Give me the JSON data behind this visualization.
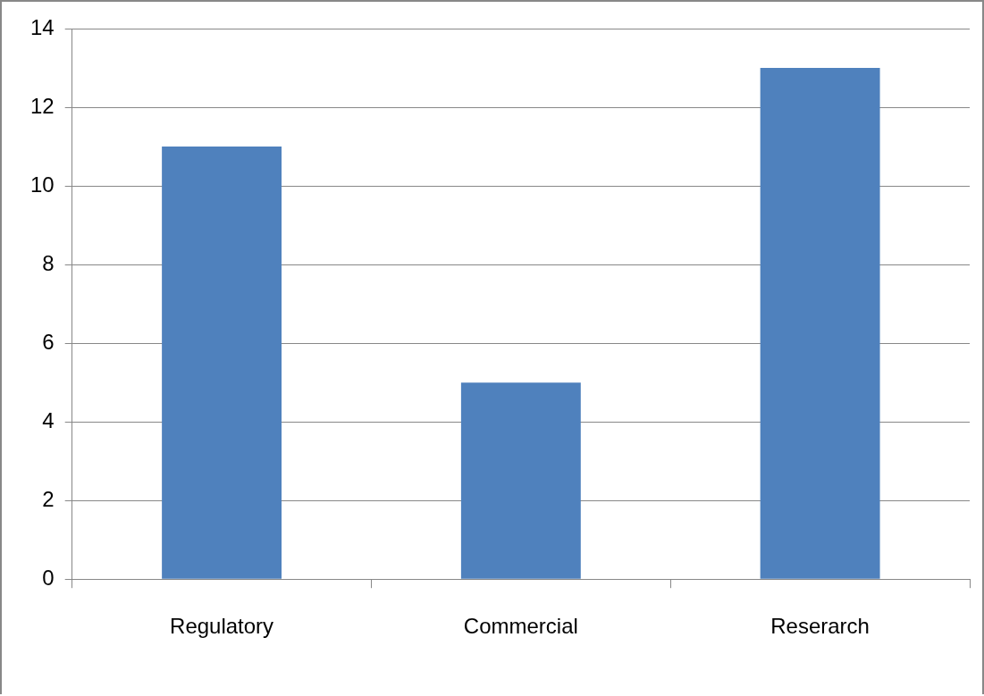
{
  "chart_data": {
    "type": "bar",
    "categories": [
      "Regulatory",
      "Commercial",
      "Reserarch"
    ],
    "values": [
      11,
      5,
      13
    ],
    "color": "#4f81bd",
    "ylim": [
      0,
      14
    ],
    "yticks": [
      0,
      2,
      4,
      6,
      8,
      10,
      12,
      14
    ],
    "grid": "y"
  }
}
